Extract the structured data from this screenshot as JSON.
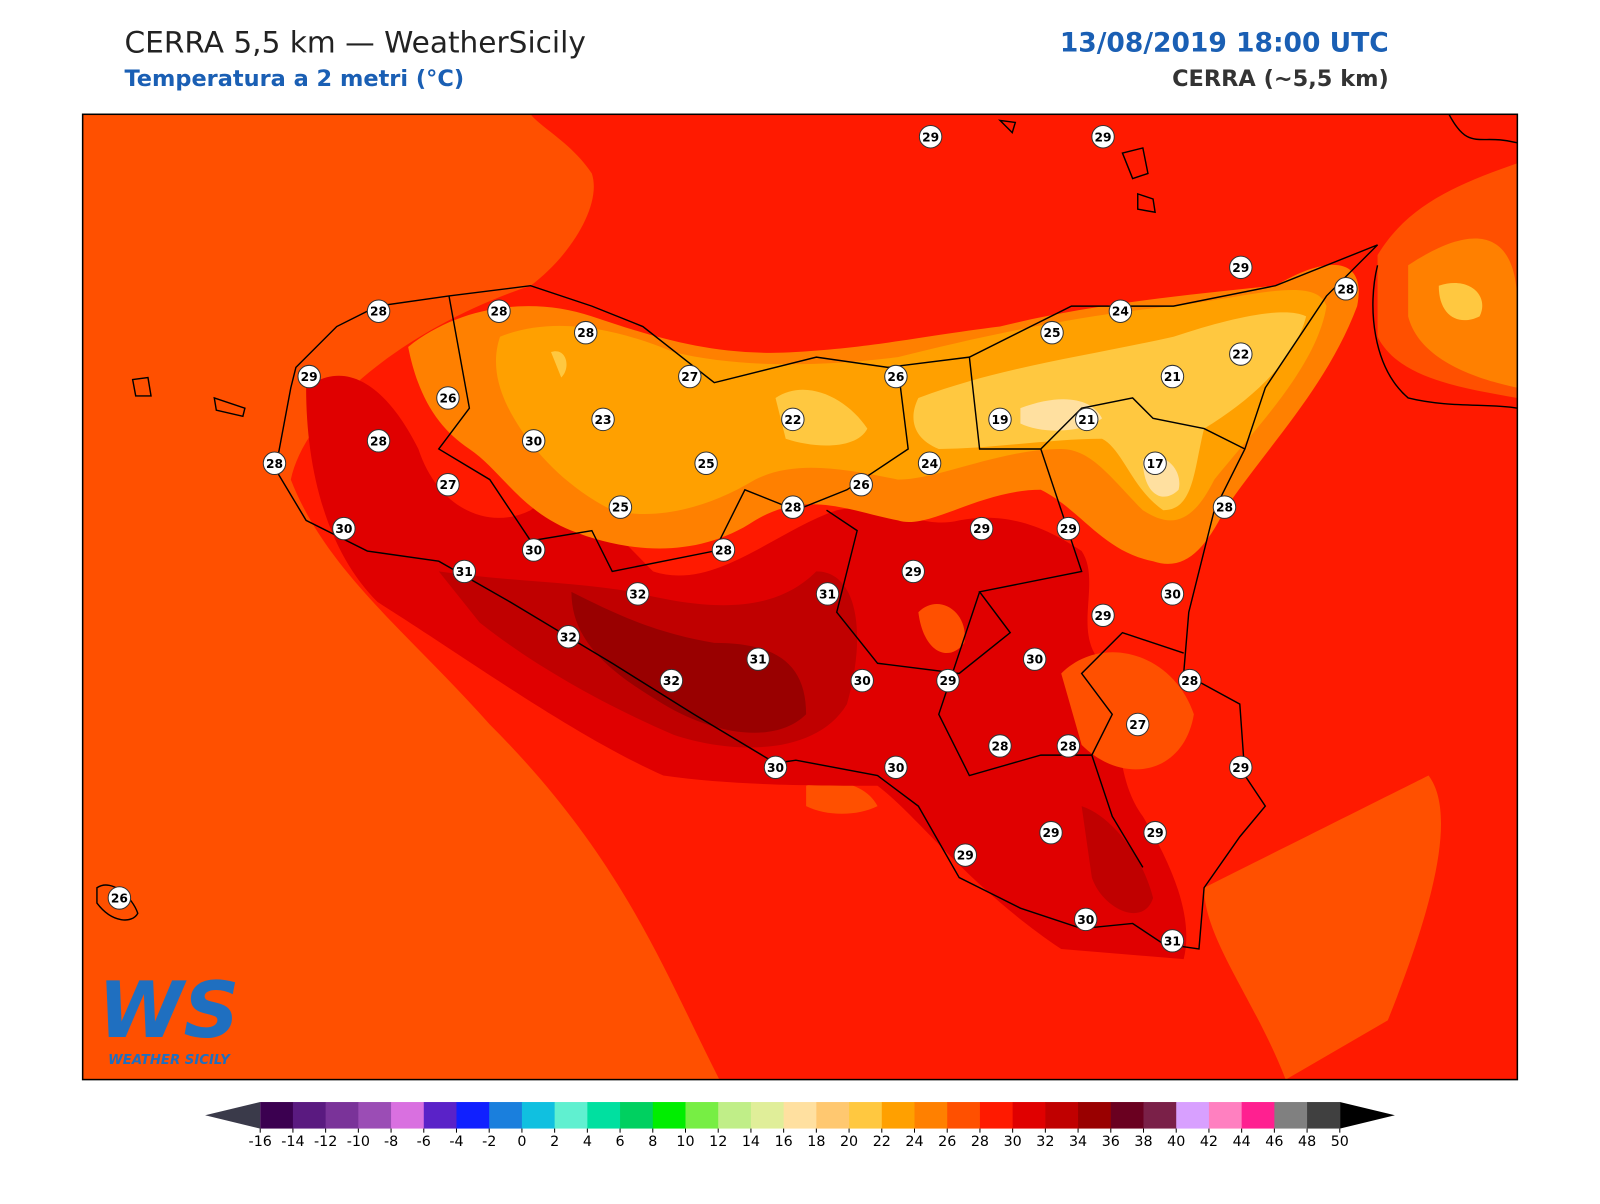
{
  "header": {
    "title": "CERRA 5,5 km — WeatherSicily",
    "subtitle": "Temperatura a 2 metri (°C)",
    "datetime": "13/08/2019 18:00 UTC",
    "model": "CERRA (~5,5 km)"
  },
  "stations": [
    29,
    29,
    29,
    28,
    28,
    28,
    28,
    25,
    24,
    22,
    29,
    27,
    26,
    21,
    26,
    23,
    22,
    19,
    21,
    28,
    30,
    28,
    25,
    24,
    17,
    27,
    26,
    25,
    28,
    28,
    30,
    29,
    29,
    30,
    28,
    31,
    29,
    32,
    31,
    30,
    29,
    32,
    31,
    30,
    32,
    30,
    29,
    28,
    27,
    28,
    28,
    30,
    30,
    29,
    29,
    29,
    29,
    26,
    30,
    31
  ],
  "colorbar": {
    "ticks": [
      -16,
      -14,
      -12,
      -10,
      -8,
      -6,
      -4,
      -2,
      0,
      2,
      4,
      6,
      8,
      10,
      12,
      14,
      16,
      18,
      20,
      22,
      24,
      26,
      28,
      30,
      32,
      34,
      36,
      38,
      40,
      42,
      44,
      46,
      48,
      50
    ],
    "colors": [
      "#3b0050",
      "#5a1a80",
      "#7a3399",
      "#9b4db5",
      "#d970e0",
      "#5a22c8",
      "#1020ff",
      "#1a7fdd",
      "#10c0e0",
      "#60f0d0",
      "#00e0a0",
      "#00d060",
      "#00ee00",
      "#77ee44",
      "#c0ee88",
      "#e0ee99",
      "#ffe0a0",
      "#ffc870",
      "#ffc840",
      "#ffa000",
      "#ff8000",
      "#ff5000",
      "#ff1a00",
      "#e00000",
      "#c00000",
      "#990000",
      "#6a0020",
      "#7a2048",
      "#d8a0ff",
      "#ff80c0",
      "#ff2090",
      "#808080",
      "#404040"
    ],
    "under": "#3a3a4a",
    "over": "#000000"
  },
  "logo": {
    "text": "WS",
    "caption": "WEATHER SICILY"
  }
}
